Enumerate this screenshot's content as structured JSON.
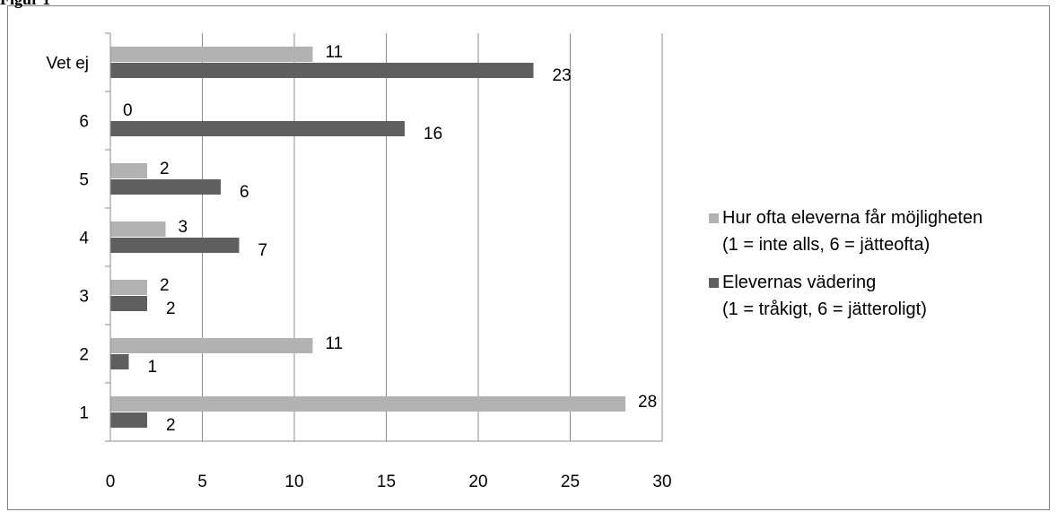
{
  "page_heading": "Figur 1",
  "chart_data": {
    "type": "bar",
    "orientation": "horizontal",
    "categories": [
      "1",
      "2",
      "3",
      "4",
      "5",
      "6",
      "Vet ej"
    ],
    "series": [
      {
        "name": "Hur ofta eleverna får möjligheten",
        "name_line2": "(1 = inte alls, 6 = jätteofta)",
        "color": "#b2b2b2",
        "values": [
          28,
          11,
          2,
          3,
          2,
          0,
          11
        ]
      },
      {
        "name": "Elevernas vädering",
        "name_line2": "(1 = tråkigt, 6 = jätteroligt)",
        "color": "#5f5f5f",
        "values": [
          2,
          1,
          2,
          7,
          6,
          16,
          23
        ]
      }
    ],
    "xlim": [
      0,
      30
    ],
    "xticks": [
      0,
      5,
      10,
      15,
      20,
      25,
      30
    ],
    "grid": true,
    "legend_position": "right"
  }
}
